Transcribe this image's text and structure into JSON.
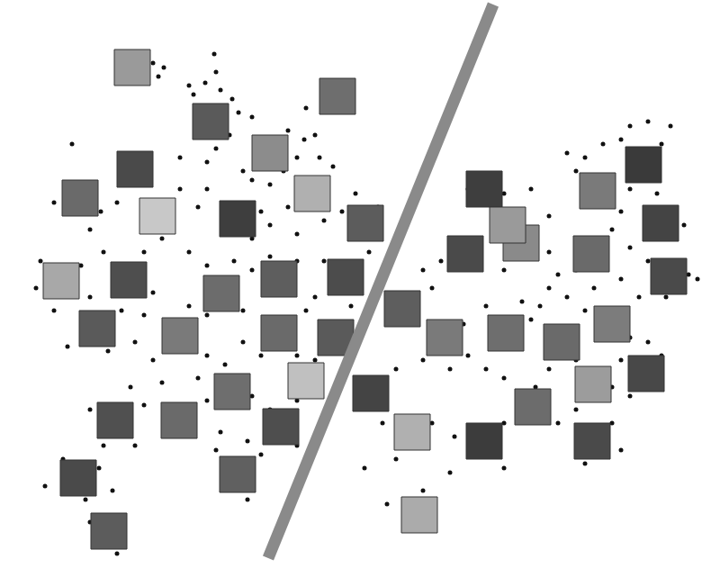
{
  "chart_data": {
    "type": "scatter",
    "xlim": [
      0,
      800
    ],
    "ylim": [
      0,
      641
    ],
    "grid": false,
    "tick_labels": false,
    "series": [
      {
        "type": "scatter",
        "marker": "circle",
        "color": "#111111",
        "x": [
          170,
          182,
          176,
          210,
          238,
          240,
          228,
          245,
          215,
          258,
          265,
          280,
          255,
          240,
          230,
          320,
          338,
          350,
          330,
          355,
          270,
          280,
          300,
          315,
          360,
          370,
          320,
          290,
          300,
          280,
          330,
          360,
          380,
          395,
          230,
          220,
          200,
          180,
          160,
          210,
          230,
          260,
          280,
          300,
          330,
          350,
          360,
          340,
          270,
          230,
          210,
          170,
          160,
          150,
          170,
          230,
          250,
          270,
          290,
          330,
          350,
          220,
          180,
          145,
          230,
          280,
          300,
          330,
          160,
          210,
          100,
          115,
          150,
          245,
          275,
          330,
          290,
          240,
          110,
          125,
          95,
          70,
          50,
          60,
          100,
          112,
          130,
          45,
          40,
          90,
          100,
          115,
          60,
          75,
          135,
          120,
          80,
          200,
          340,
          390,
          420,
          410,
          390,
          260,
          275,
          130,
          100
        ],
        "y": [
          571,
          566,
          556,
          546,
          581,
          561,
          549,
          541,
          536,
          531,
          516,
          511,
          491,
          476,
          461,
          496,
          486,
          491,
          466,
          466,
          451,
          441,
          436,
          451,
          441,
          456,
          411,
          406,
          391,
          376,
          381,
          396,
          406,
          426,
          431,
          411,
          431,
          376,
          361,
          361,
          346,
          351,
          341,
          356,
          351,
          311,
          351,
          296,
          296,
          291,
          301,
          316,
          291,
          261,
          241,
          246,
          236,
          261,
          246,
          246,
          241,
          221,
          216,
          211,
          196,
          201,
          186,
          196,
          191,
          186,
          186,
          146,
          146,
          161,
          151,
          146,
          136,
          141,
          121,
          96,
          86,
          131,
          101,
          416,
          386,
          406,
          416,
          351,
          321,
          346,
          311,
          361,
          296,
          256,
          296,
          251,
          481,
          466,
          521,
          541,
          411,
          361,
          301,
          101,
          86,
          26,
          61
        ]
      },
      {
        "type": "scatter",
        "marker": "circle",
        "color": "#111111",
        "x": [
          700,
          720,
          745,
          690,
          670,
          735,
          650,
          630,
          640,
          700,
          730,
          690,
          680,
          700,
          720,
          750,
          765,
          640,
          620,
          610,
          630,
          660,
          690,
          710,
          740,
          600,
          580,
          590,
          650,
          700,
          720,
          735,
          690,
          680,
          700,
          640,
          610,
          595,
          585,
          560,
          540,
          520,
          515,
          540,
          480,
          470,
          490,
          505,
          520,
          560,
          590,
          610,
          560,
          610,
          500,
          470,
          440,
          425,
          480,
          505,
          560,
          620,
          640,
          680,
          690,
          650,
          560,
          500,
          440,
          430,
          470,
          405,
          760,
          775
        ],
        "y": [
          501,
          506,
          501,
          486,
          481,
          481,
          466,
          471,
          451,
          431,
          426,
          406,
          386,
          366,
          351,
          351,
          336,
          341,
          336,
          321,
          311,
          321,
          331,
          311,
          311,
          301,
          306,
          286,
          296,
          266,
          261,
          246,
          241,
          211,
          201,
          241,
          231,
          211,
          196,
          221,
          231,
          246,
          281,
          301,
          321,
          341,
          351,
          376,
          431,
          426,
          431,
          401,
          341,
          361,
          231,
          241,
          231,
          171,
          171,
          156,
          171,
          171,
          186,
          171,
          141,
          126,
          121,
          116,
          131,
          81,
          96,
          121,
          391,
          331
        ]
      },
      {
        "type": "scatter",
        "marker": "square",
        "colors": [
          "#9a9a9a",
          "#6e6e6e",
          "#5a5a5a",
          "#8c8c8c",
          "#4a4a4a",
          "#6a6a6a",
          "#b0b0b0",
          "#c8c8c8",
          "#3e3e3e",
          "#5c5c5c",
          "#a8a8a8",
          "#4e4e4e",
          "#6c6c6c",
          "#5e5e5e",
          "#4c4c4c",
          "#5a5a5a",
          "#7a7a7a",
          "#6a6a6a",
          "#5a5a5a",
          "#6e6e6e",
          "#c0c0c0",
          "#505050",
          "#6a6a6a",
          "#4e4e4e",
          "#606060",
          "#4a4a4a",
          "#5c5c5c",
          "#3e3e3e",
          "#3a3a3a",
          "#7a7a7a",
          "#4a4a4a",
          "#8a8a8a",
          "#6a6a6a",
          "#444444",
          "#4a4a4a",
          "#5e5e5e",
          "#7a7a7a",
          "#6e6e6e",
          "#7c7c7c",
          "#6a6a6a",
          "#484848",
          "#9c9c9c",
          "#444444",
          "#6c6c6c",
          "#b0b0b0",
          "#3c3c3c",
          "#4a4a4a",
          "#ababab",
          "#9a9a9a"
        ],
        "x": [
          147,
          375,
          234,
          300,
          150,
          89,
          347,
          175,
          264,
          406,
          68,
          143,
          246,
          310,
          384,
          108,
          200,
          310,
          373,
          258,
          340,
          128,
          199,
          312,
          264,
          87,
          121,
          538,
          715,
          664,
          517,
          579,
          657,
          734,
          743,
          447,
          494,
          562,
          680,
          624,
          718,
          659,
          412,
          592,
          458,
          538,
          658,
          466,
          564
        ],
        "y": [
          566,
          534,
          506,
          471,
          453,
          421,
          426,
          401,
          398,
          393,
          329,
          330,
          315,
          331,
          333,
          276,
          268,
          271,
          266,
          206,
          218,
          174,
          174,
          167,
          114,
          110,
          51,
          431,
          458,
          429,
          359,
          371,
          359,
          393,
          334,
          298,
          266,
          271,
          281,
          261,
          226,
          214,
          204,
          189,
          161,
          151,
          151,
          69,
          391
        ]
      },
      {
        "type": "line",
        "line_style": "solid",
        "color": "#8a8a8a",
        "x": [
          298,
          548
        ],
        "y": [
          21,
          636
        ]
      }
    ]
  }
}
